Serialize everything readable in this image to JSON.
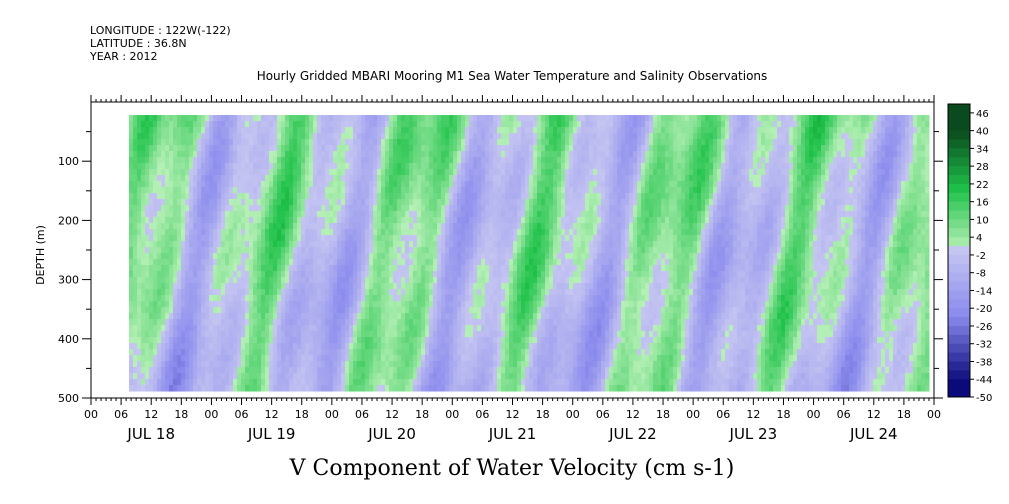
{
  "header": {
    "longitude": "LONGITUDE : 122W(-122)",
    "latitude": "LATITUDE : 36.8N",
    "year": "YEAR : 2012"
  },
  "chart_data": {
    "type": "heatmap",
    "title": "Hourly Gridded MBARI Mooring M1 Sea Water Temperature and Salinity Observations",
    "xlabel": "V Component of Water Velocity (cm s-1)",
    "ylabel": "DEPTH (m)",
    "ylim": [
      500,
      0
    ],
    "yticks": [
      "100",
      "200",
      "300",
      "400",
      "500"
    ],
    "hour_ticks": [
      "00",
      "06",
      "12",
      "18",
      "00",
      "06",
      "12",
      "18",
      "00",
      "06",
      "12",
      "18",
      "00",
      "06",
      "12",
      "18",
      "00",
      "06",
      "12",
      "18",
      "00",
      "06",
      "12",
      "18",
      "00",
      "06",
      "12",
      "18",
      "00"
    ],
    "day_labels": [
      "JUL 18",
      "JUL 19",
      "JUL 20",
      "JUL 21",
      "JUL 22",
      "JUL 23",
      "JUL 24"
    ],
    "colorbar_labels": [
      "46",
      "40",
      "34",
      "28",
      "22",
      "16",
      "10",
      "4",
      "-2",
      "-8",
      "-14",
      "-20",
      "-26",
      "-32",
      "-38",
      "-44",
      "-50"
    ],
    "colorbar_range": [
      -50,
      49
    ],
    "colors": {
      "positive_dark": "#0a4a1e",
      "positive_mid": "#1fc24a",
      "positive_light": "#b7f0b7",
      "negative_light": "#c6c6f2",
      "negative_mid": "#8a8aee",
      "negative_dark": "#0a0a7a"
    }
  }
}
